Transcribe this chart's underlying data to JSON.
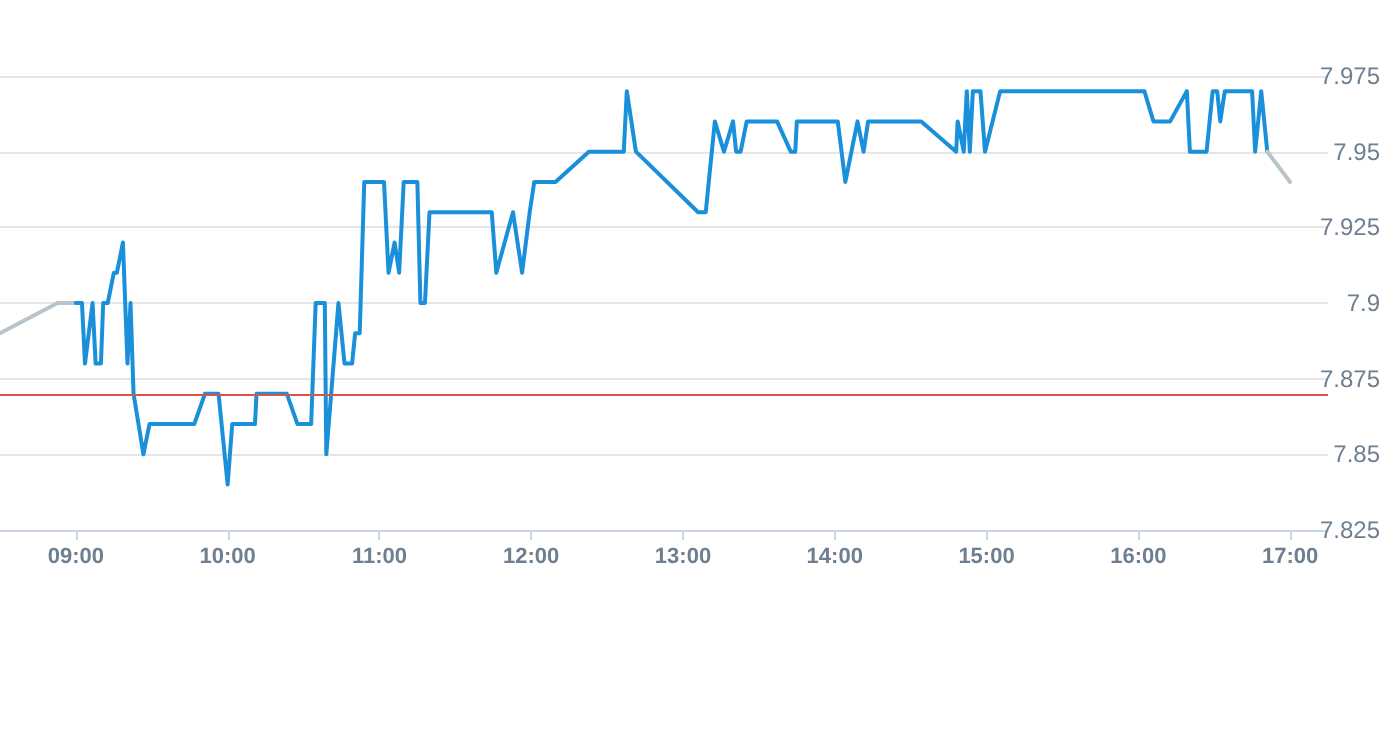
{
  "chart_data": {
    "type": "line",
    "marker": "none",
    "grid": "y",
    "xlim": [
      8.5,
      17.25
    ],
    "ylim": [
      7.825,
      7.975
    ],
    "xticks": [
      {
        "value": 9,
        "label": "09:00"
      },
      {
        "value": 10,
        "label": "10:00"
      },
      {
        "value": 11,
        "label": "11:00"
      },
      {
        "value": 12,
        "label": "12:00"
      },
      {
        "value": 13,
        "label": "13:00"
      },
      {
        "value": 14,
        "label": "14:00"
      },
      {
        "value": 15,
        "label": "15:00"
      },
      {
        "value": 16,
        "label": "16:00"
      },
      {
        "value": 17,
        "label": "17:00"
      }
    ],
    "yticks": [
      7.825,
      7.85,
      7.875,
      7.9,
      7.925,
      7.95,
      7.975
    ],
    "ref_lines": [
      {
        "axis": "y",
        "value": 7.87,
        "color": "#d9534f"
      }
    ],
    "series": [
      {
        "color": "#b8c4cc",
        "x": [
          8.5,
          8.88,
          9.0
        ],
        "values": [
          7.89,
          7.9,
          7.9
        ]
      },
      {
        "color": "#1a90db",
        "x": [
          9.0,
          9.04,
          9.06,
          9.11,
          9.13,
          9.165,
          9.18,
          9.21,
          9.25,
          9.27,
          9.31,
          9.34,
          9.36,
          9.38,
          9.445,
          9.485,
          9.78,
          9.85,
          9.94,
          10.0,
          10.03,
          10.18,
          10.19,
          10.39,
          10.46,
          10.55,
          10.58,
          10.64,
          10.65,
          10.73,
          10.77,
          10.82,
          10.84,
          10.87,
          10.9,
          11.03,
          11.06,
          11.1,
          11.13,
          11.16,
          11.25,
          11.27,
          11.3,
          11.33,
          11.74,
          11.77,
          11.88,
          11.94,
          11.99,
          12.02,
          12.16,
          12.38,
          12.61,
          12.63,
          12.69,
          13.1,
          13.15,
          13.21,
          13.27,
          13.33,
          13.35,
          13.38,
          13.42,
          13.62,
          13.71,
          13.74,
          13.75,
          14.02,
          14.07,
          14.15,
          14.19,
          14.22,
          14.57,
          14.8,
          14.81,
          14.85,
          14.87,
          14.89,
          14.91,
          14.96,
          14.99,
          15.09,
          16.04,
          16.1,
          16.21,
          16.32,
          16.34,
          16.45,
          16.49,
          16.52,
          16.54,
          16.57,
          16.75,
          16.77,
          16.81,
          16.85
        ],
        "values": [
          7.9,
          7.9,
          7.88,
          7.9,
          7.88,
          7.88,
          7.9,
          7.9,
          7.91,
          7.91,
          7.92,
          7.88,
          7.9,
          7.87,
          7.85,
          7.86,
          7.86,
          7.87,
          7.87,
          7.84,
          7.86,
          7.86,
          7.87,
          7.87,
          7.86,
          7.86,
          7.9,
          7.9,
          7.85,
          7.9,
          7.88,
          7.88,
          7.89,
          7.89,
          7.94,
          7.94,
          7.91,
          7.92,
          7.91,
          7.94,
          7.94,
          7.9,
          7.9,
          7.93,
          7.93,
          7.91,
          7.93,
          7.91,
          7.93,
          7.94,
          7.94,
          7.95,
          7.95,
          7.97,
          7.95,
          7.93,
          7.93,
          7.96,
          7.95,
          7.96,
          7.95,
          7.95,
          7.96,
          7.96,
          7.95,
          7.95,
          7.96,
          7.96,
          7.94,
          7.96,
          7.95,
          7.96,
          7.96,
          7.95,
          7.96,
          7.95,
          7.97,
          7.95,
          7.97,
          7.97,
          7.95,
          7.97,
          7.97,
          7.96,
          7.96,
          7.97,
          7.95,
          7.95,
          7.97,
          7.97,
          7.96,
          7.97,
          7.97,
          7.95,
          7.97,
          7.95
        ]
      },
      {
        "color": "#b8c4cc",
        "x": [
          16.85,
          17.0
        ],
        "values": [
          7.95,
          7.94
        ]
      }
    ]
  }
}
